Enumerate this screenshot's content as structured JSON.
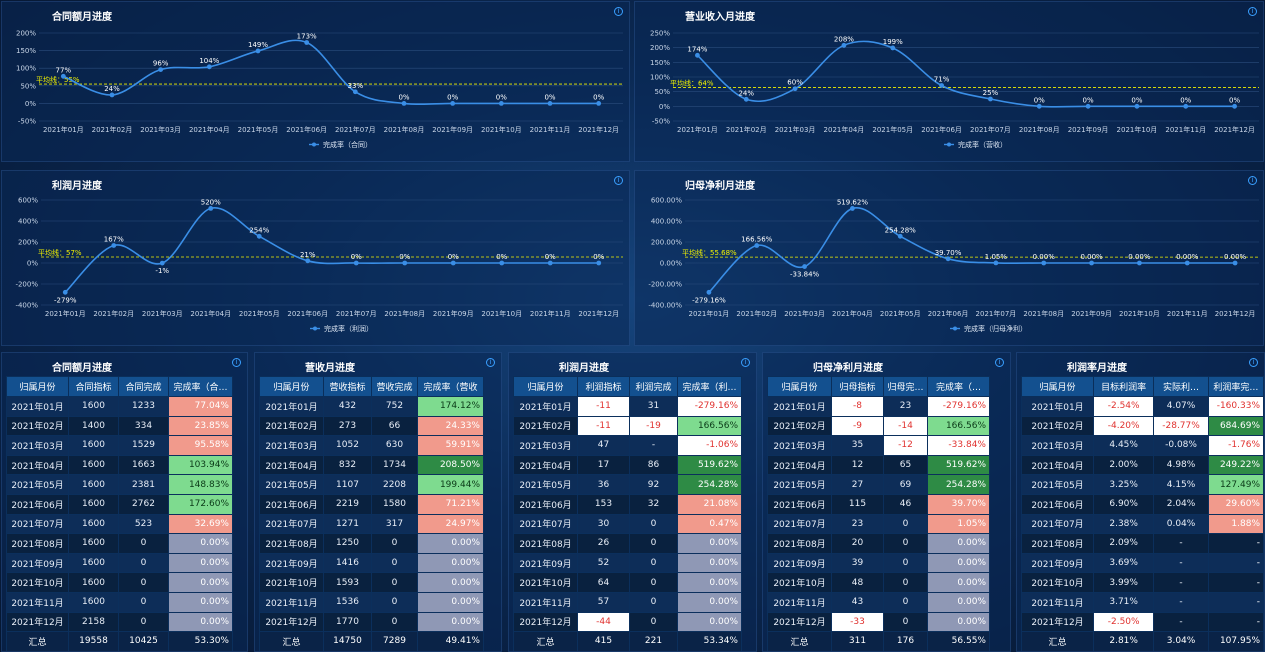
{
  "colors": {
    "line": "#3a8ee6",
    "avg": "#f3f300",
    "grid": "#2a4c7c"
  },
  "charts": [
    {
      "title": "合同额月进度",
      "legend": "完成率（合同）",
      "avg_label": "平均线：55%",
      "avg_value": 55,
      "ticks": [
        "200%",
        "150%",
        "100%",
        "50%",
        "0%",
        "-50%"
      ],
      "tick_values": [
        200,
        150,
        100,
        50,
        0,
        -50
      ],
      "months": [
        "2021年01月",
        "2021年02月",
        "2021年03月",
        "2021年04月",
        "2021年05月",
        "2021年06月",
        "2021年07月",
        "2021年08月",
        "2021年09月",
        "2021年10月",
        "2021年11月",
        "2021年12月"
      ],
      "values": [
        77,
        24,
        96,
        104,
        149,
        173,
        33,
        0,
        0,
        0,
        0,
        0
      ],
      "labels": [
        "77%",
        "24%",
        "96%",
        "104%",
        "149%",
        "173%",
        "33%",
        "0%",
        "0%",
        "0%",
        "0%",
        "0%"
      ]
    },
    {
      "title": "营业收入月进度",
      "legend": "完成率（营收）",
      "avg_label": "平均线：64%",
      "avg_value": 64,
      "ticks": [
        "250%",
        "200%",
        "150%",
        "100%",
        "50%",
        "0%",
        "-50%"
      ],
      "tick_values": [
        250,
        200,
        150,
        100,
        50,
        0,
        -50
      ],
      "months": [
        "2021年01月",
        "2021年02月",
        "2021年03月",
        "2021年04月",
        "2021年05月",
        "2021年06月",
        "2021年07月",
        "2021年08月",
        "2021年09月",
        "2021年10月",
        "2021年11月",
        "2021年12月"
      ],
      "values": [
        174,
        24,
        60,
        208,
        199,
        71,
        25,
        0,
        0,
        0,
        0,
        0
      ],
      "labels": [
        "174%",
        "24%",
        "60%",
        "208%",
        "199%",
        "71%",
        "25%",
        "0%",
        "0%",
        "0%",
        "0%",
        "0%"
      ]
    },
    {
      "title": "利润月进度",
      "legend": "完成率（利润）",
      "avg_label": "平均线：57%",
      "avg_value": 57,
      "ticks": [
        "600%",
        "400%",
        "200%",
        "0%",
        "-200%",
        "-400%"
      ],
      "tick_values": [
        600,
        400,
        200,
        0,
        -200,
        -400
      ],
      "months": [
        "2021年01月",
        "2021年02月",
        "2021年03月",
        "2021年04月",
        "2021年05月",
        "2021年06月",
        "2021年07月",
        "2021年08月",
        "2021年09月",
        "2021年10月",
        "2021年11月",
        "2021年12月"
      ],
      "values": [
        -279,
        167,
        -1,
        520,
        254,
        21,
        0,
        0,
        0,
        0,
        0,
        0
      ],
      "labels": [
        "-279%",
        "167%",
        "-1%",
        "520%",
        "254%",
        "21%",
        "0%",
        "0%",
        "0%",
        "0%",
        "0%",
        "0%"
      ]
    },
    {
      "title": "归母净利月进度",
      "legend": "完成率（归母净利）",
      "avg_label": "平均线：55.68%",
      "avg_value": 55.68,
      "ticks": [
        "600.00%",
        "400.00%",
        "200.00%",
        "0.00%",
        "-200.00%",
        "-400.00%"
      ],
      "tick_values": [
        600,
        400,
        200,
        0,
        -200,
        -400
      ],
      "months": [
        "2021年01月",
        "2021年02月",
        "2021年03月",
        "2021年04月",
        "2021年05月",
        "2021年06月",
        "2021年07月",
        "2021年08月",
        "2021年09月",
        "2021年10月",
        "2021年11月",
        "2021年12月"
      ],
      "values": [
        -279.16,
        166.56,
        -33.84,
        519.62,
        254.28,
        39.7,
        1.05,
        0,
        0,
        0,
        0,
        0
      ],
      "labels": [
        "-279.16%",
        "166.56%",
        "-33.84%",
        "519.62%",
        "254.28%",
        "39.70%",
        "1.05%",
        "0.00%",
        "0.00%",
        "0.00%",
        "0.00%",
        "0.00%"
      ]
    }
  ],
  "tables": [
    {
      "title": "合同额月进度",
      "headers": [
        "归属月份",
        "合同指标",
        "合同完成",
        "完成率（合…"
      ],
      "widths": [
        62,
        50,
        50,
        64
      ],
      "rows": [
        [
          "2021年01月",
          "1600",
          "1233",
          "77.04%"
        ],
        [
          "2021年02月",
          "1400",
          "334",
          "23.85%"
        ],
        [
          "2021年03月",
          "1600",
          "1529",
          "95.58%"
        ],
        [
          "2021年04月",
          "1600",
          "1663",
          "103.94%"
        ],
        [
          "2021年05月",
          "1600",
          "2381",
          "148.83%"
        ],
        [
          "2021年06月",
          "1600",
          "2762",
          "172.60%"
        ],
        [
          "2021年07月",
          "1600",
          "523",
          "32.69%"
        ],
        [
          "2021年08月",
          "1600",
          "0",
          "0.00%"
        ],
        [
          "2021年09月",
          "1600",
          "0",
          "0.00%"
        ],
        [
          "2021年10月",
          "1600",
          "0",
          "0.00%"
        ],
        [
          "2021年11月",
          "1600",
          "0",
          "0.00%"
        ],
        [
          "2021年12月",
          "2158",
          "0",
          "0.00%"
        ],
        [
          "汇总",
          "19558",
          "10425",
          "53.30%"
        ]
      ],
      "styles": [
        [
          "",
          "",
          "",
          "red"
        ],
        [
          "",
          "",
          "",
          "red"
        ],
        [
          "",
          "",
          "",
          "red"
        ],
        [
          "",
          "",
          "",
          "lgreen"
        ],
        [
          "",
          "",
          "",
          "lgreen"
        ],
        [
          "",
          "",
          "",
          "lgreen"
        ],
        [
          "",
          "",
          "",
          "red"
        ],
        [
          "",
          "",
          "",
          "gray"
        ],
        [
          "",
          "",
          "",
          "gray"
        ],
        [
          "",
          "",
          "",
          "gray"
        ],
        [
          "",
          "",
          "",
          "gray"
        ],
        [
          "",
          "",
          "",
          "gray"
        ],
        [
          "",
          "",
          "",
          ""
        ]
      ]
    },
    {
      "title": "营收月进度",
      "headers": [
        "归属月份",
        "营收指标",
        "营收完成",
        "完成率（营收"
      ],
      "widths": [
        64,
        48,
        46,
        66
      ],
      "rows": [
        [
          "2021年01月",
          "432",
          "752",
          "174.12%"
        ],
        [
          "2021年02月",
          "273",
          "66",
          "24.33%"
        ],
        [
          "2021年03月",
          "1052",
          "630",
          "59.91%"
        ],
        [
          "2021年04月",
          "832",
          "1734",
          "208.50%"
        ],
        [
          "2021年05月",
          "1107",
          "2208",
          "199.44%"
        ],
        [
          "2021年06月",
          "2219",
          "1580",
          "71.21%"
        ],
        [
          "2021年07月",
          "1271",
          "317",
          "24.97%"
        ],
        [
          "2021年08月",
          "1250",
          "0",
          "0.00%"
        ],
        [
          "2021年09月",
          "1416",
          "0",
          "0.00%"
        ],
        [
          "2021年10月",
          "1593",
          "0",
          "0.00%"
        ],
        [
          "2021年11月",
          "1536",
          "0",
          "0.00%"
        ],
        [
          "2021年12月",
          "1770",
          "0",
          "0.00%"
        ],
        [
          "汇总",
          "14750",
          "7289",
          "49.41%"
        ]
      ],
      "styles": [
        [
          "",
          "",
          "",
          "lgreen"
        ],
        [
          "",
          "",
          "",
          "red"
        ],
        [
          "",
          "",
          "",
          "red"
        ],
        [
          "",
          "",
          "",
          "green"
        ],
        [
          "",
          "",
          "",
          "lgreen"
        ],
        [
          "",
          "",
          "",
          "red"
        ],
        [
          "",
          "",
          "",
          "red"
        ],
        [
          "",
          "",
          "",
          "gray"
        ],
        [
          "",
          "",
          "",
          "gray"
        ],
        [
          "",
          "",
          "",
          "gray"
        ],
        [
          "",
          "",
          "",
          "gray"
        ],
        [
          "",
          "",
          "",
          "gray"
        ],
        [
          "",
          "",
          "",
          ""
        ]
      ]
    },
    {
      "title": "利润月进度",
      "headers": [
        "归属月份",
        "利润指标",
        "利润完成",
        "完成率（利…"
      ],
      "widths": [
        64,
        52,
        48,
        64
      ],
      "rows": [
        [
          "2021年01月",
          "-11",
          "31",
          "-279.16%"
        ],
        [
          "2021年02月",
          "-11",
          "-19",
          "166.56%"
        ],
        [
          "2021年03月",
          "47",
          "-",
          "-1.06%"
        ],
        [
          "2021年04月",
          "17",
          "86",
          "519.62%"
        ],
        [
          "2021年05月",
          "36",
          "92",
          "254.28%"
        ],
        [
          "2021年06月",
          "153",
          "32",
          "21.08%"
        ],
        [
          "2021年07月",
          "30",
          "0",
          "0.47%"
        ],
        [
          "2021年08月",
          "26",
          "0",
          "0.00%"
        ],
        [
          "2021年09月",
          "52",
          "0",
          "0.00%"
        ],
        [
          "2021年10月",
          "64",
          "0",
          "0.00%"
        ],
        [
          "2021年11月",
          "57",
          "0",
          "0.00%"
        ],
        [
          "2021年12月",
          "-44",
          "0",
          "0.00%"
        ],
        [
          "汇总",
          "415",
          "221",
          "53.34%"
        ]
      ],
      "styles": [
        [
          "",
          "white",
          "",
          "white"
        ],
        [
          "",
          "white",
          "white",
          "lgreen"
        ],
        [
          "",
          "",
          "",
          "white"
        ],
        [
          "",
          "",
          "",
          "green"
        ],
        [
          "",
          "",
          "",
          "green"
        ],
        [
          "",
          "",
          "",
          "red"
        ],
        [
          "",
          "",
          "",
          "red"
        ],
        [
          "",
          "",
          "",
          "gray"
        ],
        [
          "",
          "",
          "",
          "gray"
        ],
        [
          "",
          "",
          "",
          "gray"
        ],
        [
          "",
          "",
          "",
          "gray"
        ],
        [
          "",
          "white",
          "",
          "gray"
        ],
        [
          "",
          "",
          "",
          ""
        ]
      ]
    },
    {
      "title": "归母净利月进度",
      "headers": [
        "归属月份",
        "归母指标",
        "归母完…",
        "完成率（…"
      ],
      "widths": [
        64,
        52,
        44,
        62
      ],
      "rows": [
        [
          "2021年01月",
          "-8",
          "23",
          "-279.16%"
        ],
        [
          "2021年02月",
          "-9",
          "-14",
          "166.56%"
        ],
        [
          "2021年03月",
          "35",
          "-12",
          "-33.84%"
        ],
        [
          "2021年04月",
          "12",
          "65",
          "519.62%"
        ],
        [
          "2021年05月",
          "27",
          "69",
          "254.28%"
        ],
        [
          "2021年06月",
          "115",
          "46",
          "39.70%"
        ],
        [
          "2021年07月",
          "23",
          "0",
          "1.05%"
        ],
        [
          "2021年08月",
          "20",
          "0",
          "0.00%"
        ],
        [
          "2021年09月",
          "39",
          "0",
          "0.00%"
        ],
        [
          "2021年10月",
          "48",
          "0",
          "0.00%"
        ],
        [
          "2021年11月",
          "43",
          "0",
          "0.00%"
        ],
        [
          "2021年12月",
          "-33",
          "0",
          "0.00%"
        ],
        [
          "汇总",
          "311",
          "176",
          "56.55%"
        ]
      ],
      "styles": [
        [
          "",
          "white",
          "",
          "white"
        ],
        [
          "",
          "white",
          "white",
          "lgreen"
        ],
        [
          "",
          "",
          "white",
          "white"
        ],
        [
          "",
          "",
          "",
          "green"
        ],
        [
          "",
          "",
          "",
          "green"
        ],
        [
          "",
          "",
          "",
          "red"
        ],
        [
          "",
          "",
          "",
          "red"
        ],
        [
          "",
          "",
          "",
          "gray"
        ],
        [
          "",
          "",
          "",
          "gray"
        ],
        [
          "",
          "",
          "",
          "gray"
        ],
        [
          "",
          "",
          "",
          "gray"
        ],
        [
          "",
          "white",
          "",
          "gray"
        ],
        [
          "",
          "",
          "",
          ""
        ]
      ]
    },
    {
      "title": "利润率月进度",
      "headers": [
        "归属月份",
        "目标利润率",
        "实际利…",
        "利润率完…"
      ],
      "widths": [
        74,
        62,
        56,
        56
      ],
      "rows": [
        [
          "2021年01月",
          "-2.54%",
          "4.07%",
          "-160.33%"
        ],
        [
          "2021年02月",
          "-4.20%",
          "-28.77%",
          "684.69%"
        ],
        [
          "2021年03月",
          "4.45%",
          "-0.08%",
          "-1.76%"
        ],
        [
          "2021年04月",
          "2.00%",
          "4.98%",
          "249.22%"
        ],
        [
          "2021年05月",
          "3.25%",
          "4.15%",
          "127.49%"
        ],
        [
          "2021年06月",
          "6.90%",
          "2.04%",
          "29.60%"
        ],
        [
          "2021年07月",
          "2.38%",
          "0.04%",
          "1.88%"
        ],
        [
          "2021年08月",
          "2.09%",
          "-",
          "-"
        ],
        [
          "2021年09月",
          "3.69%",
          "-",
          "-"
        ],
        [
          "2021年10月",
          "3.99%",
          "-",
          "-"
        ],
        [
          "2021年11月",
          "3.71%",
          "-",
          "-"
        ],
        [
          "2021年12月",
          "-2.50%",
          "-",
          "-"
        ],
        [
          "汇总",
          "2.81%",
          "3.04%",
          "107.95%"
        ]
      ],
      "styles": [
        [
          "",
          "white",
          "",
          "white"
        ],
        [
          "",
          "white",
          "white",
          "green"
        ],
        [
          "",
          "",
          "",
          "white"
        ],
        [
          "",
          "",
          "",
          "green"
        ],
        [
          "",
          "",
          "",
          "lgreen"
        ],
        [
          "",
          "",
          "",
          "red"
        ],
        [
          "",
          "",
          "",
          "red"
        ],
        [
          "",
          "",
          "",
          ""
        ],
        [
          "",
          "",
          "",
          ""
        ],
        [
          "",
          "",
          "",
          ""
        ],
        [
          "",
          "",
          "",
          ""
        ],
        [
          "",
          "white",
          "",
          ""
        ],
        [
          "",
          "",
          "",
          ""
        ]
      ]
    }
  ]
}
